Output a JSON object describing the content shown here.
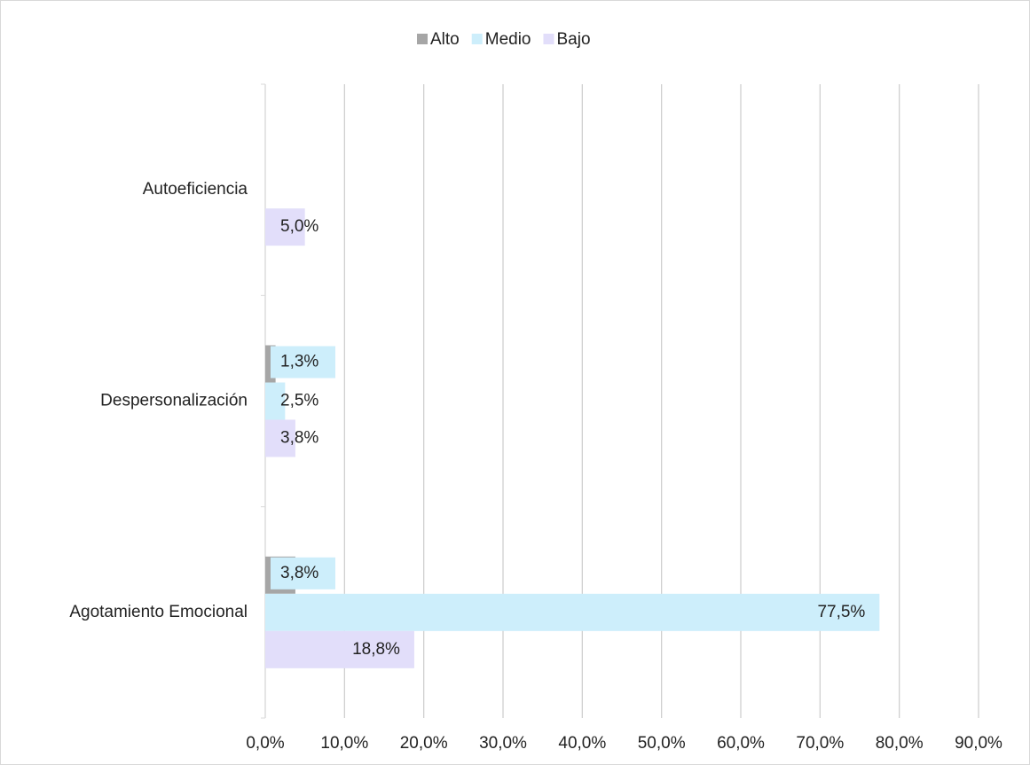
{
  "chart_data": {
    "type": "hbar",
    "categories": [
      "Agotamiento Emocional",
      "Despersonalización",
      "Autoeficiencia"
    ],
    "series": [
      {
        "name": "Alto",
        "color": "#a6a6a6",
        "values": [
          3.8,
          1.3,
          null
        ],
        "value_labels": [
          "3,8%",
          "1,3%",
          null
        ]
      },
      {
        "name": "Medio",
        "color": "#cdeefb",
        "values": [
          77.5,
          2.5,
          null
        ],
        "value_labels": [
          "77,5%",
          "2,5%",
          null
        ]
      },
      {
        "name": "Bajo",
        "color": "#e2defa",
        "values": [
          18.8,
          3.8,
          5.0
        ],
        "value_labels": [
          "18,8%",
          "3,8%",
          "5,0%"
        ]
      }
    ],
    "xlim": [
      0,
      90
    ],
    "xticks": [
      {
        "value": 0,
        "label": "0,0%"
      },
      {
        "value": 10,
        "label": "10,0%"
      },
      {
        "value": 20,
        "label": "20,0%"
      },
      {
        "value": 30,
        "label": "30,0%"
      },
      {
        "value": 40,
        "label": "40,0%"
      },
      {
        "value": 50,
        "label": "50,0%"
      },
      {
        "value": 60,
        "label": "60,0%"
      },
      {
        "value": 70,
        "label": "70,0%"
      },
      {
        "value": 80,
        "label": "80,0%"
      },
      {
        "value": 90,
        "label": "90,0%"
      }
    ],
    "grid": true,
    "legend": "top"
  }
}
